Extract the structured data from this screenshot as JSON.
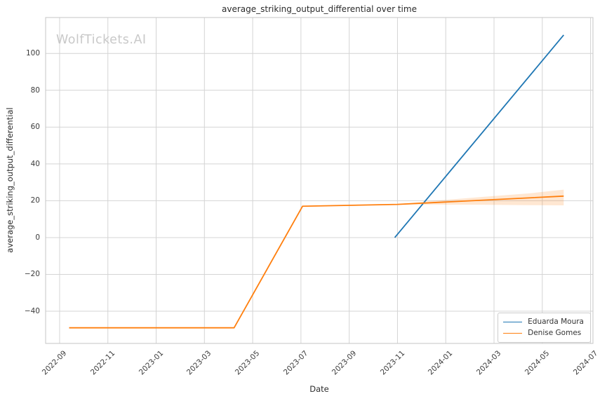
{
  "title": "average_striking_output_differential over time",
  "watermark": "WolfTickets.AI",
  "axes": {
    "xlabel": "Date",
    "ylabel": "average_striking_output_differential"
  },
  "legend": {
    "position": "lower right",
    "items": [
      {
        "label": "Eduarda Moura",
        "color": "#1f77b4"
      },
      {
        "label": "Denise Gomes",
        "color": "#ff7f0e"
      }
    ]
  },
  "colors": {
    "blue_series": "#1f77b4",
    "orange_series": "#ff7f0e",
    "grid": "#d4d4d4",
    "spine": "#c6c6c6",
    "text": "#2b2b2b",
    "tick_text": "#3b3b3b",
    "watermark": "#c9c9c9",
    "background": "#ffffff"
  },
  "chart_data": {
    "type": "line",
    "title": "average_striking_output_differential over time",
    "xlabel": "Date",
    "ylabel": "average_striking_output_differential",
    "grid": true,
    "legend_position": "lower right",
    "x_tick_labels": [
      "2022-09",
      "2022-11",
      "2023-01",
      "2023-03",
      "2023-05",
      "2023-07",
      "2023-09",
      "2023-11",
      "2024-01",
      "2024-03",
      "2024-05",
      "2024-07"
    ],
    "x_tick_interval_months": 2,
    "y_ticks": [
      -40,
      -20,
      0,
      20,
      40,
      60,
      80,
      100
    ],
    "ylim": [
      -57.5,
      119.5
    ],
    "xlim_months": [
      -0.58,
      22.1
    ],
    "series": [
      {
        "name": "Eduarda Moura",
        "color": "#1f77b4",
        "points": [
          {
            "date": "2023-10-28",
            "value": 0
          },
          {
            "date": "2024-05-28",
            "value": 110
          }
        ]
      },
      {
        "name": "Denise Gomes",
        "color": "#ff7f0e",
        "points": [
          {
            "date": "2022-09-13",
            "value": -49
          },
          {
            "date": "2023-04-08",
            "value": -49
          },
          {
            "date": "2023-07-03",
            "value": 17
          },
          {
            "date": "2023-11-01",
            "value": 18
          },
          {
            "date": "2024-05-28",
            "value": 22.5
          }
        ],
        "confidence_band": [
          {
            "date": "2023-10-28",
            "lower": 18.0,
            "upper": 18.0
          },
          {
            "date": "2023-12-15",
            "lower": 17.9,
            "upper": 19.9
          },
          {
            "date": "2024-02-15",
            "lower": 17.8,
            "upper": 22.0
          },
          {
            "date": "2024-04-15",
            "lower": 17.6,
            "upper": 24.0
          },
          {
            "date": "2024-05-28",
            "lower": 17.5,
            "upper": 26.0
          }
        ]
      }
    ]
  }
}
